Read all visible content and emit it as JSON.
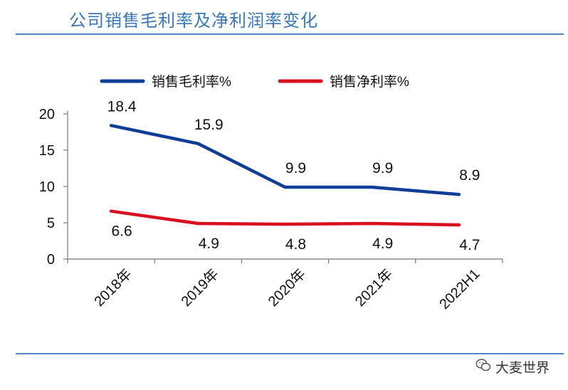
{
  "header": {
    "title": "公司销售毛利率及净利润率变化"
  },
  "watermark": {
    "text": "大麦世界",
    "icon": "wechat-icon"
  },
  "colors": {
    "accent": "#3A78B5",
    "gross": "#0E3E98",
    "net": "#D9101E"
  },
  "chart_data": {
    "type": "line",
    "title": "",
    "xlabel": "",
    "ylabel": "",
    "categories": [
      "2018年",
      "2019年",
      "2020年",
      "2021年",
      "2022H1"
    ],
    "ylim": [
      0,
      20
    ],
    "yticks": [
      0,
      5,
      10,
      15,
      20
    ],
    "grid": false,
    "legend_position": "top",
    "series": [
      {
        "name": "销售毛利率%",
        "values": [
          18.4,
          15.9,
          9.9,
          9.9,
          8.9
        ],
        "labels": [
          "18.4",
          "15.9",
          "9.9",
          "9.9",
          "8.9"
        ]
      },
      {
        "name": "销售净利率%",
        "values": [
          6.6,
          4.9,
          4.8,
          4.9,
          4.7
        ],
        "labels": [
          "6.6",
          "4.9",
          "4.8",
          "4.9",
          "4.7"
        ]
      }
    ]
  }
}
